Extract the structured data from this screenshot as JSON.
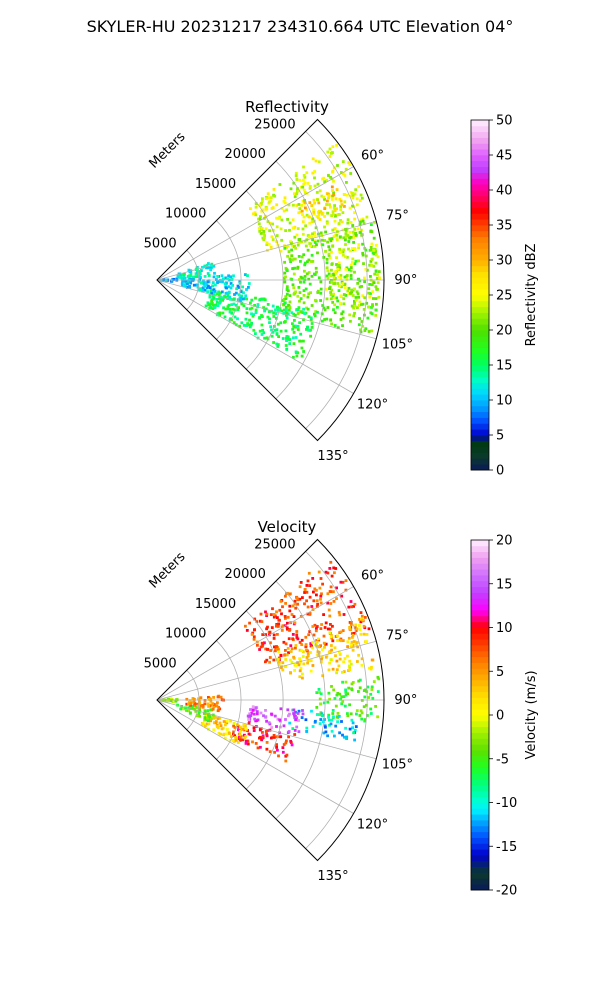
{
  "figure": {
    "suptitle": "SKYLER-HU  20231217  234310.664 UTC Elevation 04°"
  },
  "chart_data": [
    {
      "type": "heatmap",
      "title": "Reflectivity",
      "projection": "polar sector",
      "theta_range_deg": [
        45,
        135
      ],
      "radius_label": "Meters",
      "r_ticks": [
        "5000",
        "10000",
        "15000",
        "20000",
        "25000"
      ],
      "theta_ticks": [
        "60°",
        "75°",
        "90°",
        "105°",
        "120°",
        "135°"
      ],
      "rmax": 27000,
      "colorbar": {
        "label": "Reflectivity dBZ",
        "range": [
          0,
          50
        ],
        "ticks": [
          "0",
          "5",
          "10",
          "15",
          "20",
          "25",
          "30",
          "35",
          "40",
          "45",
          "50"
        ]
      },
      "echo_regions": [
        {
          "theta": [
            52,
            78
          ],
          "r": [
            13500,
            26800
          ],
          "value": 24
        },
        {
          "theta": [
            62,
            70
          ],
          "r": [
            19000,
            24000
          ],
          "value": 29
        },
        {
          "theta": [
            74,
            105
          ],
          "r": [
            15000,
            26500
          ],
          "value": 20
        },
        {
          "theta": [
            80,
            98
          ],
          "r": [
            20000,
            26500
          ],
          "value": 23
        },
        {
          "theta": [
            100,
            120
          ],
          "r": [
            6500,
            19500
          ],
          "value": 16
        },
        {
          "theta": [
            86,
            104
          ],
          "r": [
            3000,
            11000
          ],
          "value": 11
        },
        {
          "theta": [
            86,
            96
          ],
          "r": [
            300,
            2500
          ],
          "value": 10
        },
        {
          "theta": [
            72,
            86
          ],
          "r": [
            2500,
            7000
          ],
          "value": 13
        }
      ]
    },
    {
      "type": "heatmap",
      "title": "Velocity",
      "projection": "polar sector",
      "theta_range_deg": [
        45,
        135
      ],
      "radius_label": "Meters",
      "r_ticks": [
        "5000",
        "10000",
        "15000",
        "20000",
        "25000"
      ],
      "theta_ticks": [
        "60°",
        "75°",
        "90°",
        "105°",
        "120°",
        "135°"
      ],
      "rmax": 27000,
      "colorbar": {
        "label": "Velocity (m/s)",
        "range": [
          -20,
          20
        ],
        "ticks": [
          "-20",
          "-15",
          "-10",
          "-5",
          "0",
          "5",
          "10",
          "15",
          "20"
        ]
      },
      "echo_regions": [
        {
          "theta": [
            50,
            72
          ],
          "r": [
            13500,
            26800
          ],
          "value": 8
        },
        {
          "theta": [
            68,
            82
          ],
          "r": [
            15000,
            26500
          ],
          "value": 2
        },
        {
          "theta": [
            84,
            96
          ],
          "r": [
            19000,
            26500
          ],
          "value": -5
        },
        {
          "theta": [
            94,
            102
          ],
          "r": [
            16000,
            24000
          ],
          "value": -11
        },
        {
          "theta": [
            94,
            104
          ],
          "r": [
            11000,
            17500
          ],
          "value": 15
        },
        {
          "theta": [
            104,
            116
          ],
          "r": [
            9500,
            17000
          ],
          "value": 9
        },
        {
          "theta": [
            106,
            120
          ],
          "r": [
            6000,
            11500
          ],
          "value": 2
        },
        {
          "theta": [
            100,
            112
          ],
          "r": [
            2500,
            7000
          ],
          "value": -4
        },
        {
          "theta": [
            86,
            100
          ],
          "r": [
            3500,
            8000
          ],
          "value": 6
        },
        {
          "theta": [
            86,
            96
          ],
          "r": [
            300,
            2500
          ],
          "value": -3
        }
      ]
    }
  ]
}
